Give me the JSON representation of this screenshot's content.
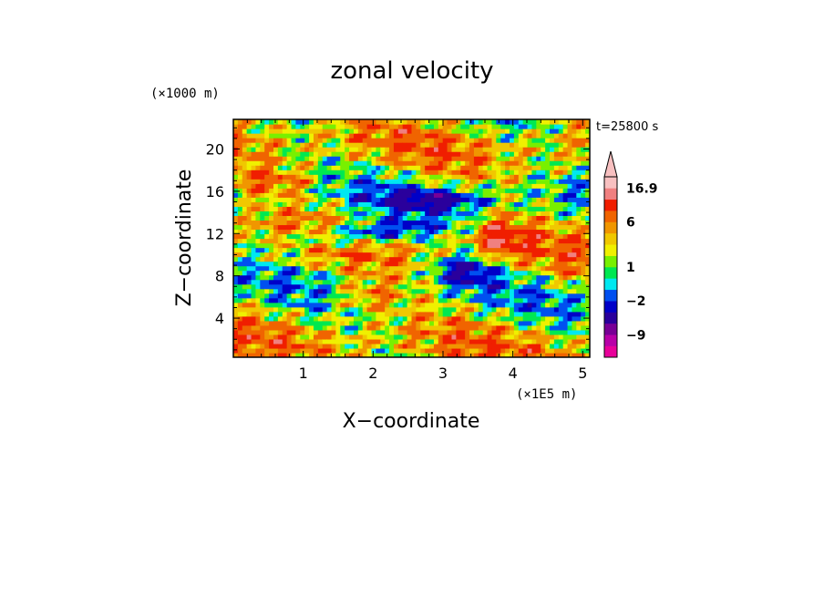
{
  "chart_data": {
    "type": "heatmap",
    "title": "zonal velocity",
    "xlabel": "X−coordinate",
    "ylabel": "Z−coordinate",
    "x_scale_label": "(×1E5 m)",
    "y_scale_label": "(×1000 m)",
    "time_label": "t=25800 s",
    "xlim": [
      0,
      5.1
    ],
    "ylim": [
      0.3,
      22.8
    ],
    "x_ticks": [
      1,
      2,
      3,
      4,
      5
    ],
    "y_ticks": [
      4,
      8,
      12,
      16,
      20
    ],
    "colorbar": {
      "levels": [
        -15,
        -12,
        -9,
        -6,
        -4,
        -2,
        -1,
        0,
        1,
        2,
        3,
        4,
        6,
        9,
        12,
        16.9
      ],
      "labeled_levels": [
        "16.9",
        "6",
        "1",
        "−2",
        "−9"
      ],
      "labeled_values": [
        16.9,
        6,
        1,
        -2,
        -9
      ],
      "extend_max": true,
      "colors": [
        "#e8009a",
        "#b800a8",
        "#780096",
        "#2a009c",
        "#0000c8",
        "#0050f0",
        "#00e8f0",
        "#00e850",
        "#78f000",
        "#f0f000",
        "#f0c800",
        "#f09600",
        "#f06400",
        "#f01e00",
        "#f08080",
        "#f8c0c0"
      ]
    }
  }
}
